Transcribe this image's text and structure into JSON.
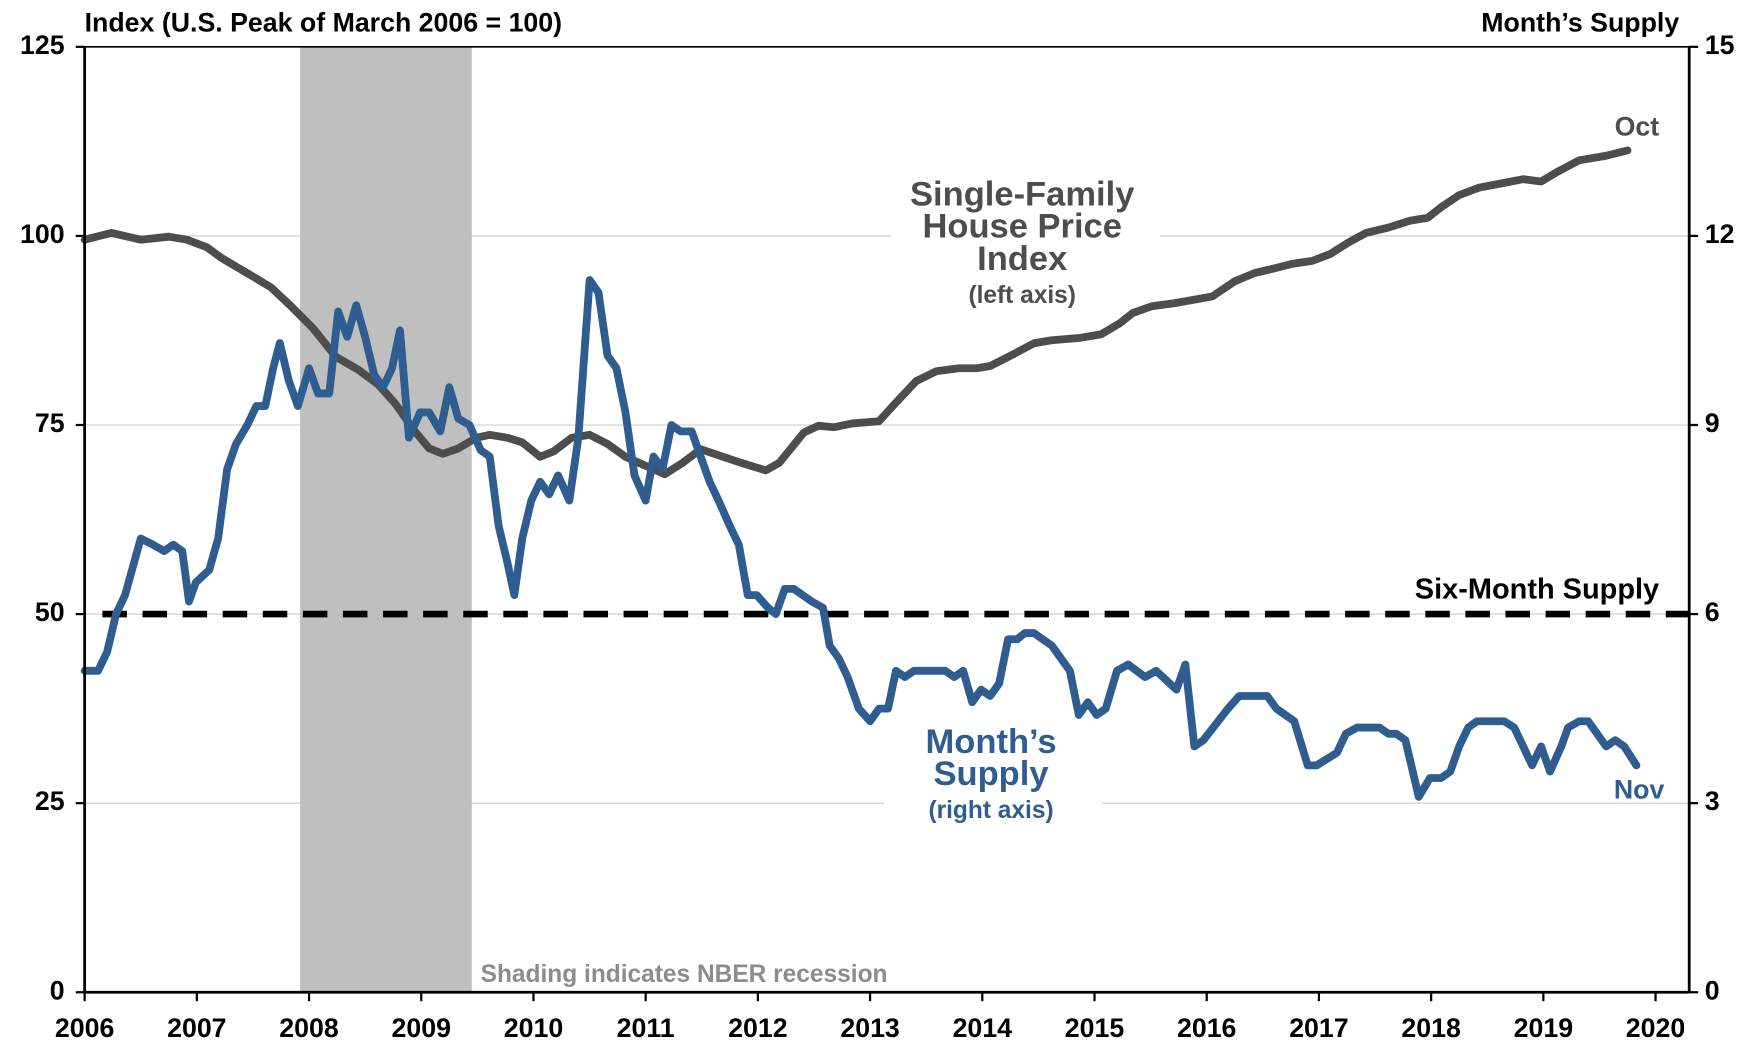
{
  "chart_data": {
    "type": "line",
    "y_title": "Index (U.S. Peak of March 2006 = 100)",
    "y2_title": "Month’s Supply",
    "xlim": [
      2006,
      2020.3
    ],
    "xticks": [
      2006,
      2007,
      2008,
      2009,
      2010,
      2011,
      2012,
      2013,
      2014,
      2015,
      2016,
      2017,
      2018,
      2019,
      2020
    ],
    "ylim": [
      0,
      125
    ],
    "yticks": [
      0,
      25,
      50,
      75,
      100,
      125
    ],
    "y2lim": [
      0,
      15
    ],
    "y2ticks": [
      0,
      3,
      6,
      9,
      12,
      15
    ],
    "grid": true,
    "shading": {
      "start": 2007.92,
      "end": 2009.45,
      "color": "#bfbfbf",
      "label": "Shading indicates NBER recession"
    },
    "reference_line": {
      "value": 6,
      "axis": "y2",
      "color": "#000000",
      "label": "Six-Month Supply"
    },
    "series": [
      {
        "label_lines": [
          "Single-Family",
          "House Price",
          "Index"
        ],
        "note": "(left axis)",
        "end_label": "Oct",
        "color": "#4d4d4d",
        "axis": "y",
        "x": [
          2006.0,
          2006.24,
          2006.5,
          2006.75,
          2006.91,
          2007.09,
          2007.23,
          2007.47,
          2007.66,
          2007.84,
          2008.04,
          2008.24,
          2008.44,
          2008.62,
          2008.77,
          2008.93,
          2009.07,
          2009.19,
          2009.33,
          2009.49,
          2009.61,
          2009.77,
          2009.9,
          2010.06,
          2010.18,
          2010.34,
          2010.5,
          2010.66,
          2010.82,
          2011.0,
          2011.17,
          2011.33,
          2011.49,
          2011.69,
          2011.85,
          2012.07,
          2012.19,
          2012.41,
          2012.54,
          2012.68,
          2012.84,
          2013.08,
          2013.22,
          2013.41,
          2013.59,
          2013.79,
          2013.95,
          2014.07,
          2014.27,
          2014.46,
          2014.62,
          2014.86,
          2015.06,
          2015.22,
          2015.34,
          2015.51,
          2015.71,
          2016.05,
          2016.25,
          2016.43,
          2016.6,
          2016.76,
          2016.94,
          2017.1,
          2017.26,
          2017.42,
          2017.62,
          2017.81,
          2017.97,
          2018.09,
          2018.25,
          2018.43,
          2018.61,
          2018.82,
          2018.98,
          2019.14,
          2019.32,
          2019.56,
          2019.75
        ],
        "values": [
          99.5,
          100.4,
          99.5,
          99.9,
          99.5,
          98.5,
          97.0,
          94.9,
          93.2,
          90.7,
          87.7,
          84.0,
          82.3,
          80.3,
          77.8,
          74.4,
          71.9,
          71.2,
          71.9,
          73.3,
          73.7,
          73.3,
          72.7,
          70.8,
          71.5,
          73.3,
          73.7,
          72.5,
          70.8,
          69.6,
          68.5,
          70.0,
          71.8,
          70.8,
          70.0,
          69.0,
          70.0,
          74.0,
          74.9,
          74.7,
          75.2,
          75.5,
          77.8,
          80.8,
          82.1,
          82.5,
          82.5,
          82.8,
          84.3,
          85.8,
          86.2,
          86.5,
          87.0,
          88.4,
          89.8,
          90.7,
          91.1,
          92.0,
          94.0,
          95.1,
          95.7,
          96.3,
          96.7,
          97.6,
          99.1,
          100.4,
          101.1,
          102.0,
          102.4,
          103.8,
          105.4,
          106.4,
          106.9,
          107.5,
          107.2,
          108.6,
          110.0,
          110.6,
          111.3
        ]
      },
      {
        "label_lines": [
          "Month’s",
          "Supply"
        ],
        "note": "(right axis)",
        "end_label": "Nov",
        "color": "#2f5d8f",
        "axis": "y2",
        "x": [
          2006.0,
          2006.12,
          2006.2,
          2006.28,
          2006.36,
          2006.5,
          2006.61,
          2006.71,
          2006.79,
          2006.87,
          2006.93,
          2006.99,
          2007.11,
          2007.19,
          2007.27,
          2007.35,
          2007.45,
          2007.53,
          2007.61,
          2007.68,
          2007.74,
          2007.82,
          2007.9,
          2008.0,
          2008.08,
          2008.18,
          2008.26,
          2008.34,
          2008.42,
          2008.5,
          2008.58,
          2008.66,
          2008.74,
          2008.81,
          2008.89,
          2008.99,
          2009.07,
          2009.17,
          2009.25,
          2009.33,
          2009.43,
          2009.53,
          2009.61,
          2009.69,
          2009.77,
          2009.83,
          2009.9,
          2009.98,
          2010.06,
          2010.14,
          2010.22,
          2010.32,
          2010.4,
          2010.5,
          2010.58,
          2010.66,
          2010.74,
          2010.82,
          2010.9,
          2011.0,
          2011.07,
          2011.15,
          2011.23,
          2011.31,
          2011.41,
          2011.49,
          2011.57,
          2011.65,
          2011.75,
          2011.83,
          2011.91,
          2011.99,
          2012.09,
          2012.16,
          2012.24,
          2012.32,
          2012.48,
          2012.58,
          2012.64,
          2012.72,
          2012.8,
          2012.9,
          2013.0,
          2013.08,
          2013.16,
          2013.23,
          2013.31,
          2013.39,
          2013.67,
          2013.75,
          2013.83,
          2013.91,
          2013.99,
          2014.07,
          2014.15,
          2014.23,
          2014.31,
          2014.38,
          2014.46,
          2014.62,
          2014.78,
          2014.86,
          2014.94,
          2015.02,
          2015.1,
          2015.2,
          2015.3,
          2015.45,
          2015.55,
          2015.73,
          2015.81,
          2015.89,
          2015.97,
          2016.19,
          2016.29,
          2016.47,
          2016.54,
          2016.62,
          2016.78,
          2016.9,
          2016.98,
          2017.16,
          2017.24,
          2017.34,
          2017.54,
          2017.62,
          2017.69,
          2017.77,
          2017.89,
          2017.99,
          2018.09,
          2018.17,
          2018.25,
          2018.33,
          2018.41,
          2018.65,
          2018.74,
          2018.82,
          2018.9,
          2018.98,
          2019.06,
          2019.16,
          2019.22,
          2019.32,
          2019.4,
          2019.56,
          2019.64,
          2019.72,
          2019.83
        ],
        "values": [
          5.1,
          5.1,
          5.4,
          6.0,
          6.3,
          7.2,
          7.1,
          7.0,
          7.1,
          7.0,
          6.2,
          6.5,
          6.7,
          7.2,
          8.3,
          8.7,
          9.0,
          9.3,
          9.3,
          9.9,
          10.3,
          9.7,
          9.3,
          9.9,
          9.5,
          9.5,
          10.8,
          10.4,
          10.9,
          10.4,
          9.8,
          9.6,
          9.9,
          10.5,
          8.8,
          9.2,
          9.2,
          8.9,
          9.6,
          9.1,
          9.0,
          8.6,
          8.5,
          7.4,
          6.8,
          6.3,
          7.2,
          7.8,
          8.1,
          7.9,
          8.2,
          7.8,
          8.8,
          11.3,
          11.1,
          10.1,
          9.9,
          9.2,
          8.2,
          7.8,
          8.5,
          8.3,
          9.0,
          8.9,
          8.9,
          8.5,
          8.1,
          7.8,
          7.4,
          7.1,
          6.3,
          6.3,
          6.1,
          6.0,
          6.4,
          6.4,
          6.2,
          6.1,
          5.5,
          5.3,
          5.0,
          4.5,
          4.3,
          4.5,
          4.5,
          5.1,
          5.0,
          5.1,
          5.1,
          5.0,
          5.1,
          4.6,
          4.8,
          4.7,
          4.9,
          5.6,
          5.6,
          5.7,
          5.7,
          5.5,
          5.1,
          4.4,
          4.6,
          4.4,
          4.5,
          5.1,
          5.2,
          5.0,
          5.1,
          4.8,
          5.2,
          3.9,
          4.0,
          4.5,
          4.7,
          4.7,
          4.7,
          4.5,
          4.3,
          3.6,
          3.6,
          3.8,
          4.1,
          4.2,
          4.2,
          4.1,
          4.1,
          4.0,
          3.1,
          3.4,
          3.4,
          3.5,
          3.9,
          4.2,
          4.3,
          4.3,
          4.2,
          3.9,
          3.6,
          3.9,
          3.5,
          3.9,
          4.2,
          4.3,
          4.3,
          3.9,
          4.0,
          3.9,
          3.6
        ]
      }
    ]
  }
}
